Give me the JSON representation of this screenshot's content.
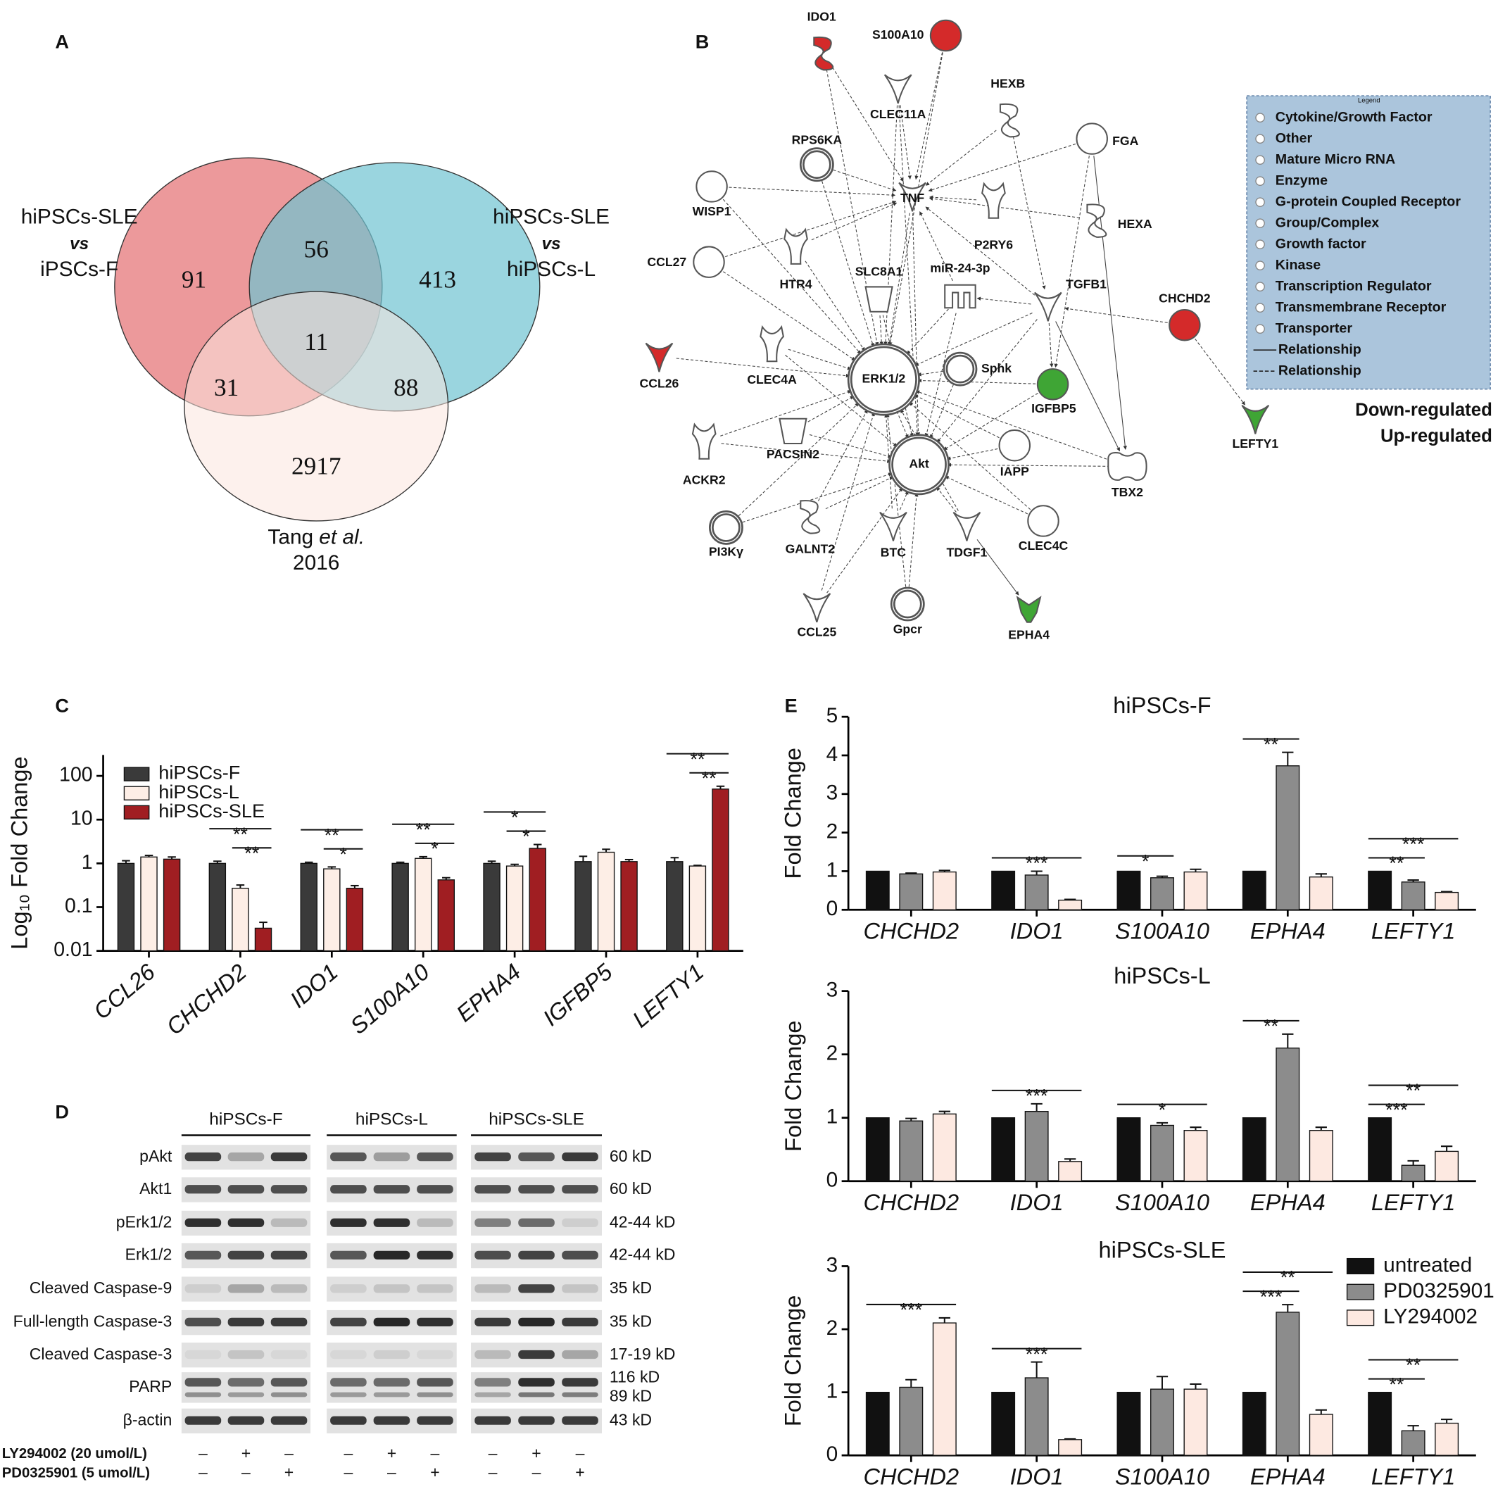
{
  "panel_labels": [
    "A",
    "B",
    "C",
    "D",
    "E"
  ],
  "venn": {
    "sets": [
      {
        "label": [
          "hiPSCs-SLE",
          "vs",
          "iPSCs-F"
        ]
      },
      {
        "label": [
          "hiPSCs-SLE",
          "vs",
          "hiPSCs-L"
        ]
      },
      {
        "label": [
          "Tang",
          "et al.",
          "2016"
        ]
      }
    ],
    "regions": [
      91,
      56,
      413,
      11,
      31,
      88,
      2917
    ]
  },
  "network": {
    "nodes": [
      {
        "label": "IDO1",
        "color": "#d42a2a"
      },
      {
        "label": "S100A10",
        "color": "#d42a2a"
      },
      {
        "label": "CLEC11A"
      },
      {
        "label": "HEXB"
      },
      {
        "label": "RPS6KA"
      },
      {
        "label": "FGA"
      },
      {
        "label": "TNF"
      },
      {
        "label": "WISP1"
      },
      {
        "label": "P2RY6"
      },
      {
        "label": "HEXA"
      },
      {
        "label": "CCL27"
      },
      {
        "label": "HTR4"
      },
      {
        "label": "SLC8A1"
      },
      {
        "label": "miR-24-3p"
      },
      {
        "label": "TGFB1"
      },
      {
        "label": "CHCHD2",
        "color": "#d42a2a"
      },
      {
        "label": "CCL26",
        "color": "#d42a2a"
      },
      {
        "label": "CLEC4A"
      },
      {
        "label": "ERK1/2"
      },
      {
        "label": "Sphk"
      },
      {
        "label": "IGFBP5",
        "color": "#3fa535"
      },
      {
        "label": "LEFTY1",
        "color": "#3fa535"
      },
      {
        "label": "ACKR2"
      },
      {
        "label": "PACSIN2"
      },
      {
        "label": "Akt"
      },
      {
        "label": "IAPP"
      },
      {
        "label": "TBX2"
      },
      {
        "label": "PI3Kγ"
      },
      {
        "label": "GALNT2"
      },
      {
        "label": "BTC"
      },
      {
        "label": "TDGF1"
      },
      {
        "label": "CLEC4C"
      },
      {
        "label": "CCL25"
      },
      {
        "label": "Gpcr"
      },
      {
        "label": "EPHA4",
        "color": "#3fa535"
      }
    ],
    "legend": {
      "title": "Legend",
      "items": [
        "Cytokine/Growth Factor",
        "Other",
        "Mature Micro RNA",
        "Enzyme",
        "G-protein Coupled Receptor",
        "Group/Complex",
        "Growth factor",
        "Kinase",
        "Transcription Regulator",
        "Transmembrane Receptor",
        "Transporter",
        "Relationship",
        "Relationship"
      ]
    },
    "regulation": {
      "down": "Down-regulated",
      "up": "Up-regulated"
    }
  },
  "chart_data": [
    {
      "type": "bar",
      "ylabel": "Log₁₀ Fold Change",
      "log": true,
      "legend": "upper left",
      "categories": [
        "CCL26",
        "CHCHD2",
        "IDO1",
        "S100A10",
        "EPHA4",
        "IGFBP5",
        "LEFTY1"
      ],
      "series": [
        {
          "name": "hiPSCs-F",
          "color": "#3a3a3a",
          "values": [
            1.0,
            1.0,
            1.0,
            1.0,
            1.0,
            1.1,
            1.1
          ],
          "errors": [
            0.15,
            0.12,
            0.06,
            0.06,
            0.12,
            0.35,
            0.25
          ]
        },
        {
          "name": "hiPSCs-L",
          "color": "#fdeee6",
          "values": [
            1.4,
            0.27,
            0.75,
            1.3,
            0.87,
            1.8,
            0.87
          ],
          "errors": [
            0.12,
            0.05,
            0.08,
            0.12,
            0.08,
            0.3,
            0.03
          ]
        },
        {
          "name": "hiPSCs-SLE",
          "color": "#a01e22",
          "values": [
            1.25,
            0.033,
            0.27,
            0.42,
            2.2,
            1.1,
            50
          ],
          "errors": [
            0.15,
            0.012,
            0.04,
            0.05,
            0.5,
            0.12,
            8
          ]
        }
      ],
      "ylim": [
        0.01,
        300
      ],
      "yticks": [
        0.01,
        0.1,
        1,
        10,
        100
      ],
      "significance": [
        {
          "category": "CHCHD2",
          "pair": [
            "hiPSCs-F",
            "hiPSCs-SLE"
          ],
          "label": "**"
        },
        {
          "category": "CHCHD2",
          "pair": [
            "hiPSCs-L",
            "hiPSCs-SLE"
          ],
          "label": "**"
        },
        {
          "category": "IDO1",
          "pair": [
            "hiPSCs-F",
            "hiPSCs-SLE"
          ],
          "label": "**"
        },
        {
          "category": "IDO1",
          "pair": [
            "hiPSCs-L",
            "hiPSCs-SLE"
          ],
          "label": "*"
        },
        {
          "category": "S100A10",
          "pair": [
            "hiPSCs-F",
            "hiPSCs-SLE"
          ],
          "label": "**"
        },
        {
          "category": "S100A10",
          "pair": [
            "hiPSCs-L",
            "hiPSCs-SLE"
          ],
          "label": "*"
        },
        {
          "category": "EPHA4",
          "pair": [
            "hiPSCs-F",
            "hiPSCs-SLE"
          ],
          "label": "*"
        },
        {
          "category": "EPHA4",
          "pair": [
            "hiPSCs-L",
            "hiPSCs-SLE"
          ],
          "label": "*"
        },
        {
          "category": "LEFTY1",
          "pair": [
            "hiPSCs-F",
            "hiPSCs-SLE"
          ],
          "label": "**"
        },
        {
          "category": "LEFTY1",
          "pair": [
            "hiPSCs-L",
            "hiPSCs-SLE"
          ],
          "label": "**"
        }
      ]
    },
    {
      "type": "bar",
      "title": "hiPSCs-F",
      "ylabel": "Fold Change",
      "categories": [
        "CHCHD2",
        "IDO1",
        "S100A10",
        "EPHA4",
        "LEFTY1"
      ],
      "series": [
        {
          "name": "untreated",
          "color": "#111111",
          "values": [
            1,
            1,
            1,
            1,
            1
          ]
        },
        {
          "name": "PD0325901",
          "color": "#8c8c8c",
          "values": [
            0.93,
            0.9,
            0.83,
            3.73,
            0.72
          ],
          "errors": [
            0.02,
            0.1,
            0.04,
            0.35,
            0.05
          ]
        },
        {
          "name": "LY294002",
          "color": "#fde9e1",
          "values": [
            0.98,
            0.25,
            0.98,
            0.85,
            0.45
          ],
          "errors": [
            0.04,
            0.02,
            0.07,
            0.08,
            0.02
          ]
        }
      ],
      "ylim": [
        0,
        5
      ],
      "yticks": [
        0,
        1,
        2,
        3,
        4,
        5
      ],
      "significance": [
        {
          "category": "IDO1",
          "pair": [
            "untreated",
            "LY294002"
          ],
          "label": "***"
        },
        {
          "category": "S100A10",
          "pair": [
            "untreated",
            "PD0325901"
          ],
          "label": "*"
        },
        {
          "category": "EPHA4",
          "pair": [
            "untreated",
            "PD0325901"
          ],
          "label": "**"
        },
        {
          "category": "LEFTY1",
          "pair": [
            "untreated",
            "LY294002"
          ],
          "label": "***"
        },
        {
          "category": "LEFTY1",
          "pair": [
            "untreated",
            "PD0325901"
          ],
          "label": "**"
        }
      ]
    },
    {
      "type": "bar",
      "title": "hiPSCs-L",
      "ylabel": "Fold Change",
      "categories": [
        "CHCHD2",
        "IDO1",
        "S100A10",
        "EPHA4",
        "LEFTY1"
      ],
      "series": [
        {
          "name": "untreated",
          "color": "#111111",
          "values": [
            1,
            1,
            1,
            1,
            1
          ]
        },
        {
          "name": "PD0325901",
          "color": "#8c8c8c",
          "values": [
            0.95,
            1.1,
            0.88,
            2.1,
            0.25
          ],
          "errors": [
            0.04,
            0.12,
            0.04,
            0.22,
            0.07
          ]
        },
        {
          "name": "LY294002",
          "color": "#fde9e1",
          "values": [
            1.06,
            0.31,
            0.8,
            0.8,
            0.47
          ],
          "errors": [
            0.04,
            0.04,
            0.05,
            0.05,
            0.08
          ]
        }
      ],
      "ylim": [
        0,
        3
      ],
      "yticks": [
        0,
        1,
        2,
        3
      ],
      "significance": [
        {
          "category": "IDO1",
          "pair": [
            "untreated",
            "LY294002"
          ],
          "label": "***"
        },
        {
          "category": "S100A10",
          "pair": [
            "untreated",
            "LY294002"
          ],
          "label": "*"
        },
        {
          "category": "EPHA4",
          "pair": [
            "untreated",
            "PD0325901"
          ],
          "label": "**"
        },
        {
          "category": "LEFTY1",
          "pair": [
            "untreated",
            "LY294002"
          ],
          "label": "**"
        },
        {
          "category": "LEFTY1",
          "pair": [
            "untreated",
            "PD0325901"
          ],
          "label": "***"
        }
      ]
    },
    {
      "type": "bar",
      "title": "hiPSCs-SLE",
      "ylabel": "Fold Change",
      "legend": "upper right",
      "categories": [
        "CHCHD2",
        "IDO1",
        "S100A10",
        "EPHA4",
        "LEFTY1"
      ],
      "series": [
        {
          "name": "untreated",
          "color": "#111111",
          "values": [
            1,
            1,
            1,
            1,
            1
          ]
        },
        {
          "name": "PD0325901",
          "color": "#8c8c8c",
          "values": [
            1.08,
            1.23,
            1.05,
            2.27,
            0.39
          ],
          "errors": [
            0.12,
            0.25,
            0.2,
            0.12,
            0.08
          ]
        },
        {
          "name": "LY294002",
          "color": "#fde9e1",
          "values": [
            2.1,
            0.25,
            1.05,
            0.65,
            0.51
          ],
          "errors": [
            0.08,
            0.01,
            0.08,
            0.07,
            0.06
          ]
        }
      ],
      "ylim": [
        0,
        3
      ],
      "yticks": [
        0,
        1,
        2,
        3
      ],
      "significance": [
        {
          "category": "CHCHD2",
          "pair": [
            "untreated",
            "LY294002"
          ],
          "label": "***"
        },
        {
          "category": "IDO1",
          "pair": [
            "untreated",
            "LY294002"
          ],
          "label": "***"
        },
        {
          "category": "EPHA4",
          "pair": [
            "untreated",
            "LY294002"
          ],
          "label": "**"
        },
        {
          "category": "EPHA4",
          "pair": [
            "untreated",
            "PD0325901"
          ],
          "label": "***"
        },
        {
          "category": "LEFTY1",
          "pair": [
            "untreated",
            "LY294002"
          ],
          "label": "**"
        },
        {
          "category": "LEFTY1",
          "pair": [
            "untreated",
            "PD0325901"
          ],
          "label": "**"
        }
      ]
    }
  ],
  "blot": {
    "groups": [
      "hiPSCs-F",
      "hiPSCs-L",
      "hiPSCs-SLE"
    ],
    "rows": [
      {
        "name": "pAkt",
        "sizes": [
          "60 kD"
        ]
      },
      {
        "name": "Akt1",
        "sizes": [
          "60 kD"
        ]
      },
      {
        "name": "pErk1/2",
        "sizes": [
          "42-44 kD"
        ]
      },
      {
        "name": "Erk1/2",
        "sizes": [
          "42-44 kD"
        ]
      },
      {
        "name": "Cleaved Caspase-9",
        "sizes": [
          "35 kD"
        ]
      },
      {
        "name": "Full-length Caspase-3",
        "sizes": [
          "35 kD"
        ]
      },
      {
        "name": "Cleaved Caspase-3",
        "sizes": [
          "17-19 kD"
        ]
      },
      {
        "name": "PARP",
        "sizes": [
          "116 kD",
          "89 kD"
        ]
      },
      {
        "name": "β-actin",
        "sizes": [
          "43 kD"
        ]
      }
    ],
    "treatments": [
      {
        "name": "LY294002 (20 umol/L)",
        "signs": [
          "–",
          "+",
          "–",
          "–",
          "+",
          "–",
          "–",
          "+",
          "–"
        ]
      },
      {
        "name": "PD0325901 (5 umol/L)",
        "signs": [
          "–",
          "–",
          "+",
          "–",
          "–",
          "+",
          "–",
          "–",
          "+"
        ]
      }
    ]
  }
}
